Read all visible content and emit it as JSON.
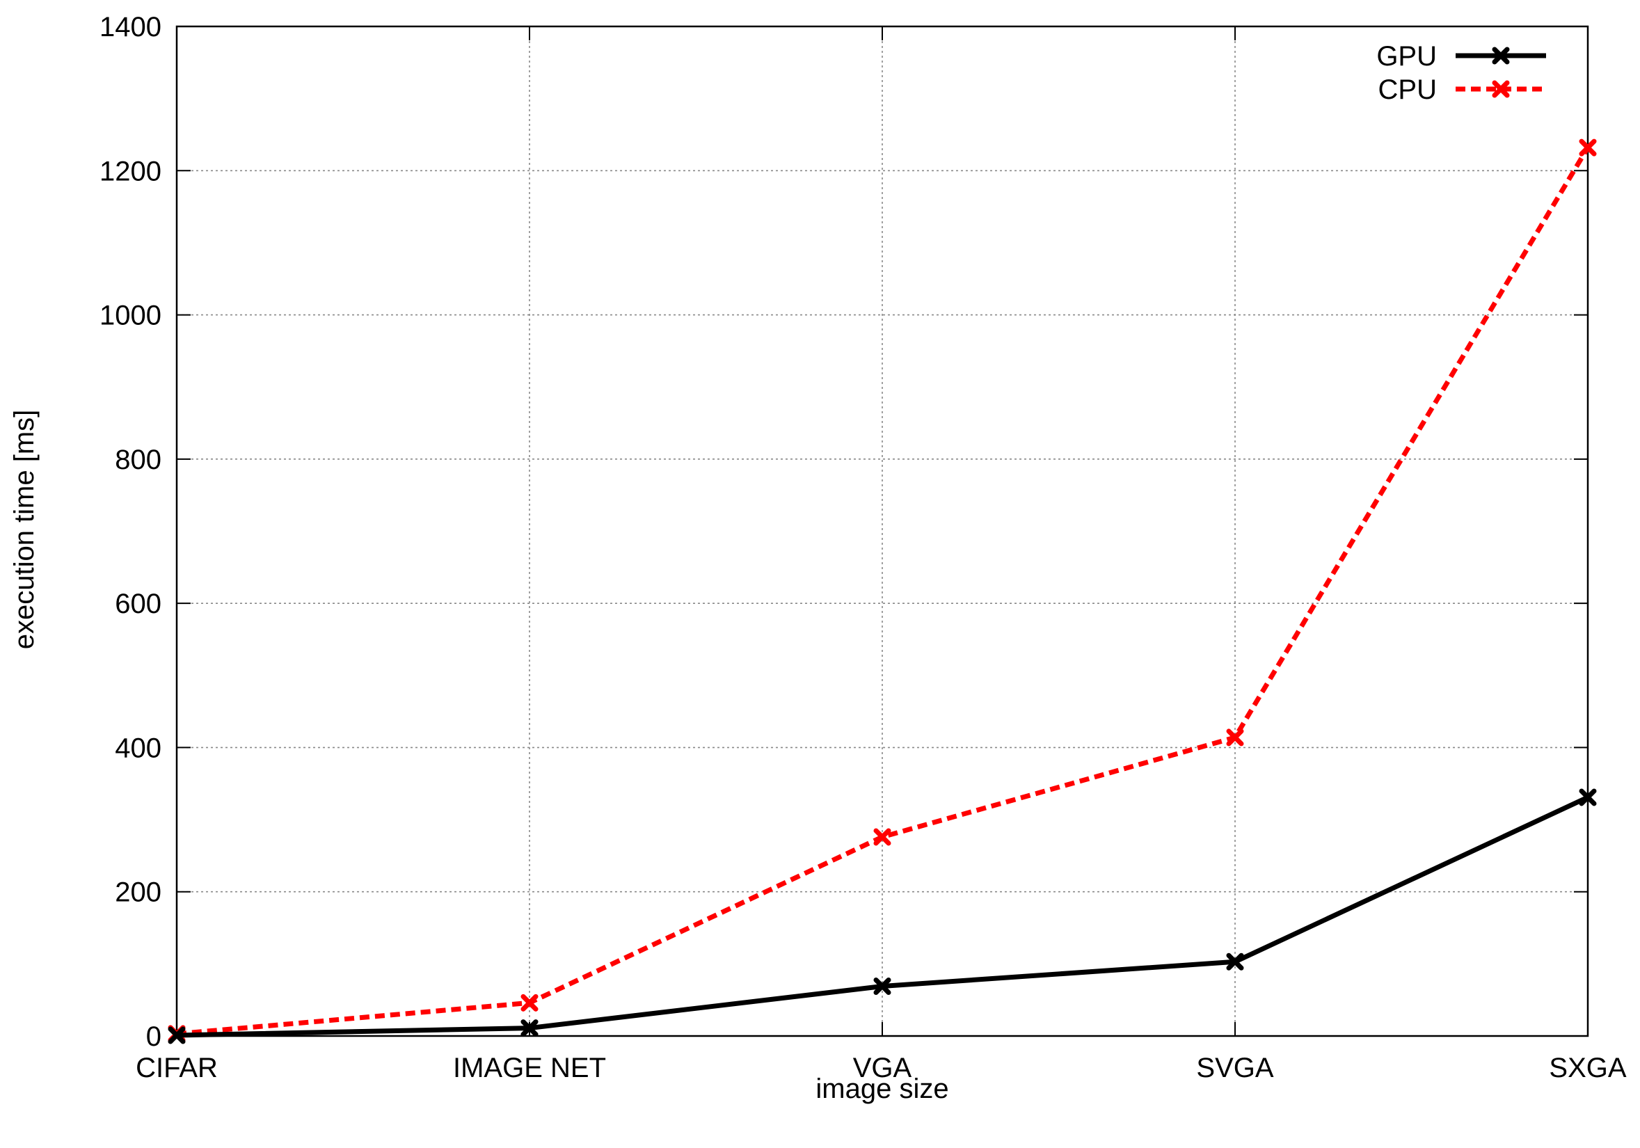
{
  "chart_data": {
    "type": "line",
    "title": "",
    "xlabel": "image size",
    "ylabel": "execution time [ms]",
    "categories": [
      "CIFAR",
      "IMAGE NET",
      "VGA",
      "SVGA",
      "SXGA"
    ],
    "ylim": [
      0,
      1400
    ],
    "yticks": [
      0,
      200,
      400,
      600,
      800,
      1000,
      1200,
      1400
    ],
    "grid": true,
    "legend_position": "top-right",
    "series": [
      {
        "name": "GPU",
        "color": "#000000",
        "line_style": "solid",
        "marker": "x",
        "values": [
          1,
          11,
          69,
          103,
          331
        ]
      },
      {
        "name": "CPU",
        "color": "#ff0000",
        "line_style": "dashed",
        "marker": "x",
        "values": [
          3,
          46,
          276,
          414,
          1232
        ]
      }
    ]
  }
}
